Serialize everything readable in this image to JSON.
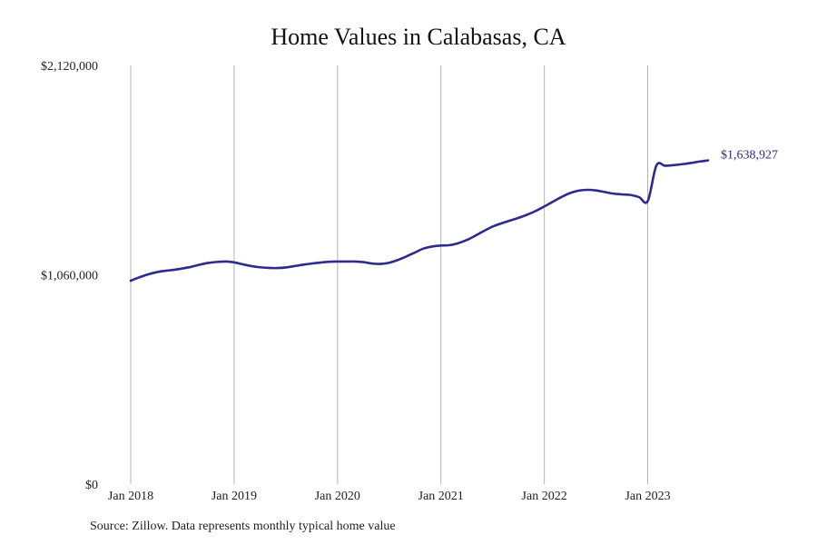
{
  "chart_data": {
    "type": "line",
    "title": "Home Values in Calabasas, CA",
    "xlabel": "",
    "ylabel": "",
    "ylim": [
      0,
      2120000
    ],
    "y_ticks": [
      {
        "value": 0,
        "label": "$0"
      },
      {
        "value": 1060000,
        "label": "$1,060,000"
      },
      {
        "value": 2120000,
        "label": "$2,120,000"
      }
    ],
    "x_ticks": [
      {
        "value": 2018,
        "label": "Jan 2018"
      },
      {
        "value": 2019,
        "label": "Jan 2019"
      },
      {
        "value": 2020,
        "label": "Jan 2020"
      },
      {
        "value": 2021,
        "label": "Jan 2021"
      },
      {
        "value": 2022,
        "label": "Jan 2022"
      },
      {
        "value": 2023,
        "label": "Jan 2023"
      }
    ],
    "xlim": [
      "2018-01",
      "2023-08"
    ],
    "grid": "vertical gridlines at each January",
    "line_color": "#2e2a8f",
    "end_label": "$1,638,927",
    "series": [
      {
        "x": [
          "2018-01",
          "2018-02",
          "2018-03",
          "2018-04",
          "2018-05",
          "2018-06",
          "2018-07",
          "2018-08",
          "2018-09",
          "2018-10",
          "2018-11",
          "2018-12",
          "2019-01",
          "2019-02",
          "2019-03",
          "2019-04",
          "2019-05",
          "2019-06",
          "2019-07",
          "2019-08",
          "2019-09",
          "2019-10",
          "2019-11",
          "2019-12",
          "2020-01",
          "2020-02",
          "2020-03",
          "2020-04",
          "2020-05",
          "2020-06",
          "2020-07",
          "2020-08",
          "2020-09",
          "2020-10",
          "2020-11",
          "2020-12",
          "2021-01",
          "2021-02",
          "2021-03",
          "2021-04",
          "2021-05",
          "2021-06",
          "2021-07",
          "2021-08",
          "2021-09",
          "2021-10",
          "2021-11",
          "2021-12",
          "2022-01",
          "2022-02",
          "2022-03",
          "2022-04",
          "2022-05",
          "2022-06",
          "2022-07",
          "2022-08",
          "2022-09",
          "2022-10",
          "2022-11",
          "2022-12",
          "2023-01",
          "2023-02",
          "2023-03",
          "2023-04",
          "2023-05",
          "2023-06",
          "2023-07",
          "2023-08"
        ],
        "y": [
          1030000,
          1047000,
          1062000,
          1073000,
          1080000,
          1085000,
          1092000,
          1100000,
          1111000,
          1120000,
          1125000,
          1127000,
          1123000,
          1113000,
          1104000,
          1098000,
          1095000,
          1094000,
          1097000,
          1104000,
          1111000,
          1117000,
          1122000,
          1126000,
          1127000,
          1127000,
          1127000,
          1124000,
          1117000,
          1115000,
          1121000,
          1135000,
          1153000,
          1173000,
          1193000,
          1203000,
          1208000,
          1210000,
          1220000,
          1236000,
          1258000,
          1282000,
          1304000,
          1320000,
          1334000,
          1348000,
          1364000,
          1383000,
          1406000,
          1430000,
          1454000,
          1474000,
          1486000,
          1490000,
          1487000,
          1479000,
          1471000,
          1467000,
          1464000,
          1453000,
          1433000,
          1613000,
          1612000,
          1615000,
          1620000,
          1626000,
          1633000,
          1638927
        ]
      }
    ]
  },
  "source_note": "Source: Zillow. Data represents monthly typical home value"
}
